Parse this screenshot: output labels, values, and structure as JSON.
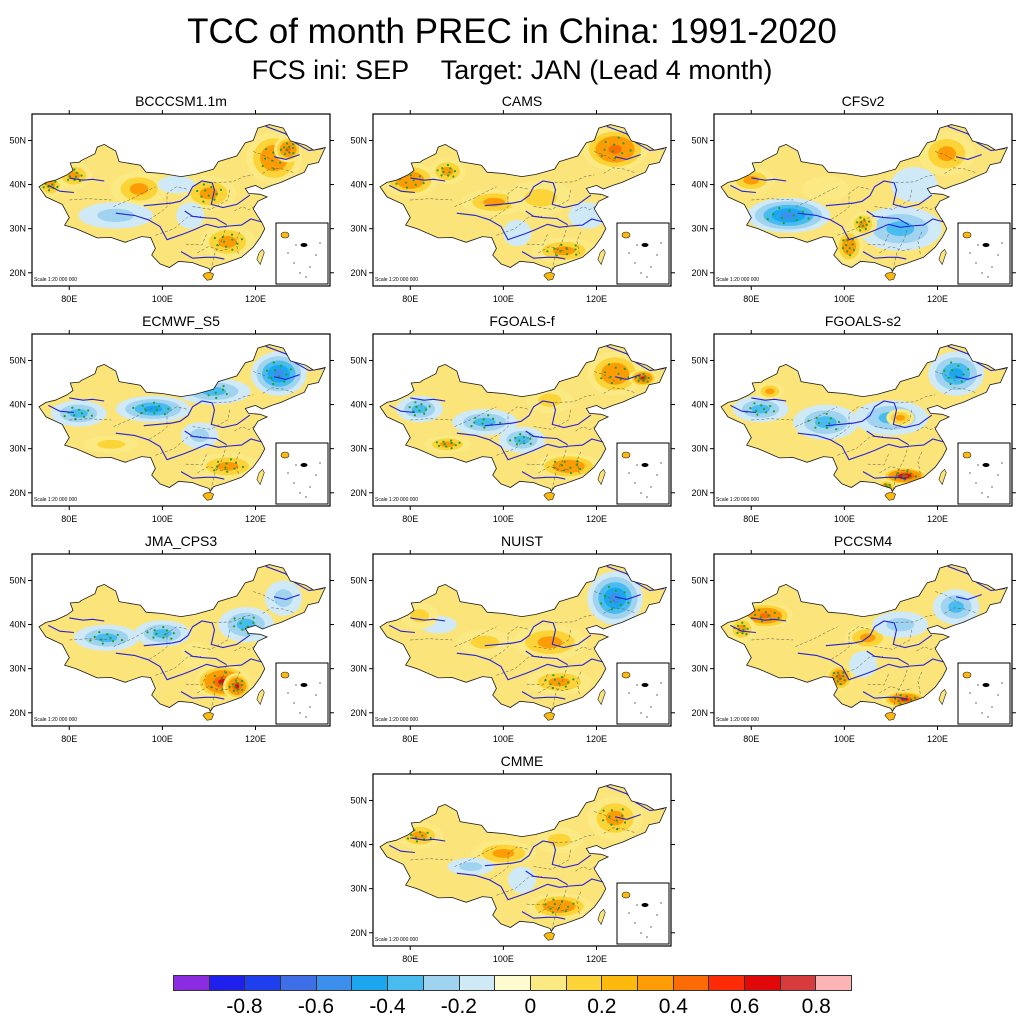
{
  "title": "TCC of month PREC in China: 1991-2020",
  "subtitle": {
    "init": "FCS ini: SEP",
    "target": "Target: JAN (Lead 4 month)"
  },
  "map": {
    "lat_ticks": [
      "20N",
      "30N",
      "40N",
      "50N"
    ],
    "lon_ticks": [
      "80E",
      "100E",
      "120E"
    ],
    "scale_note": "Scale 1:20 000 000",
    "lon_range": [
      72,
      136
    ],
    "lat_range": [
      17,
      56
    ],
    "stipple_color": "#1fa01f",
    "river_color": "#2424d8"
  },
  "panels": [
    {
      "name": "BCCCSM1.1m",
      "pattern": "mostly positive; strong positive northeast and south; weak negative on Tibetan plateau and central China"
    },
    {
      "name": "CAMS",
      "pattern": "mostly positive; strongest over Xinjiang and northeast; weak negative patches east China"
    },
    {
      "name": "CFSv2",
      "pattern": "negative over Tibetan plateau and east China; positive Yunnan-Sichuan and northeast"
    },
    {
      "name": "ECMWF_S5",
      "pattern": "negative across north and northeast; positive over south China"
    },
    {
      "name": "FGOALS-f",
      "pattern": "positive northeast and south China; negative west and central China"
    },
    {
      "name": "FGOALS-s2",
      "pattern": "negative over most of China; strong positive over southern China coast"
    },
    {
      "name": "JMA_CPS3",
      "pattern": "negative over north and west; strong positive over southeast China"
    },
    {
      "name": "NUIST",
      "pattern": "negative northeast; mostly positive elsewhere"
    },
    {
      "name": "PCCSM4",
      "pattern": "positive Xinjiang, Yunnan and south coast; negative north-central and northeast"
    },
    {
      "name": "CMME",
      "pattern": "multi-model ensemble; mostly positive, negative patches over Tibetan plateau and central China"
    }
  ],
  "colorbar": {
    "levels": [
      -0.9,
      -0.8,
      -0.7,
      -0.6,
      -0.5,
      -0.4,
      -0.3,
      -0.2,
      -0.1,
      0,
      0.1,
      0.2,
      0.3,
      0.4,
      0.5,
      0.6,
      0.7,
      0.8,
      0.9
    ],
    "colors": [
      "#8b2be2",
      "#2020ee",
      "#1f3fee",
      "#3f6fe8",
      "#3d8fee",
      "#1aa7ef",
      "#49bcef",
      "#9fd3f0",
      "#cfe9f6",
      "#fefbd0",
      "#fbe983",
      "#fcd437",
      "#fdb90c",
      "#fd9c05",
      "#fd6b04",
      "#fe2b06",
      "#e00808",
      "#d83b3b",
      "#fcb4b4"
    ],
    "labels": [
      "-0.8",
      "-0.6",
      "-0.4",
      "-0.2",
      "0",
      "0.2",
      "0.4",
      "0.6",
      "0.8"
    ]
  }
}
